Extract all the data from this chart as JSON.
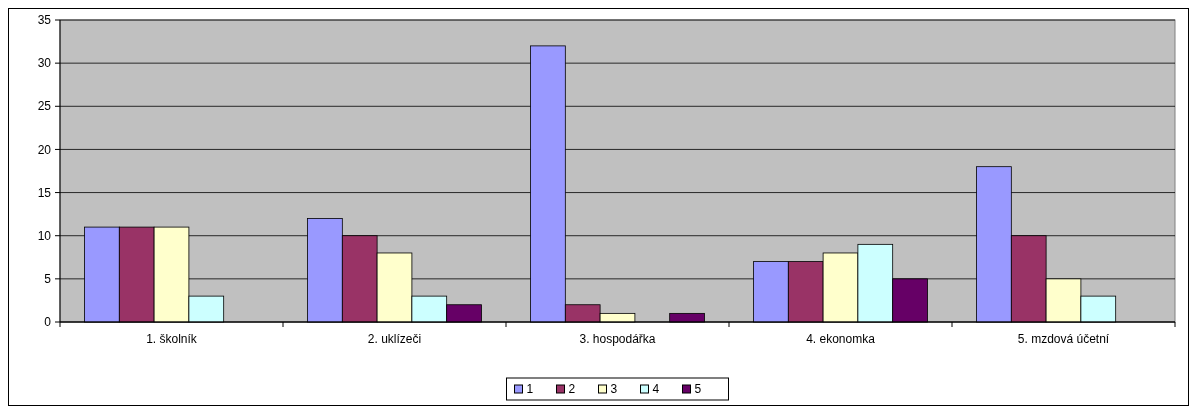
{
  "chart_data": {
    "type": "bar",
    "categories": [
      "1. školník",
      "2. uklízeči",
      "3. hospodářka",
      "4. ekonomka",
      "5. mzdová účetní"
    ],
    "series": [
      {
        "name": "1",
        "color": "#9999ff",
        "values": [
          11,
          12,
          32,
          7,
          18
        ]
      },
      {
        "name": "2",
        "color": "#993366",
        "values": [
          11,
          10,
          2,
          7,
          10
        ]
      },
      {
        "name": "3",
        "color": "#ffffcc",
        "values": [
          11,
          8,
          1,
          8,
          5
        ]
      },
      {
        "name": "4",
        "color": "#ccffff",
        "values": [
          3,
          3,
          0,
          9,
          3
        ]
      },
      {
        "name": "5",
        "color": "#660066",
        "values": [
          0,
          2,
          1,
          5,
          0
        ]
      }
    ],
    "ylim": [
      0,
      35
    ],
    "yticks": [
      0,
      5,
      10,
      15,
      20,
      25,
      30,
      35
    ],
    "grid": "y",
    "legend": "bottom"
  }
}
